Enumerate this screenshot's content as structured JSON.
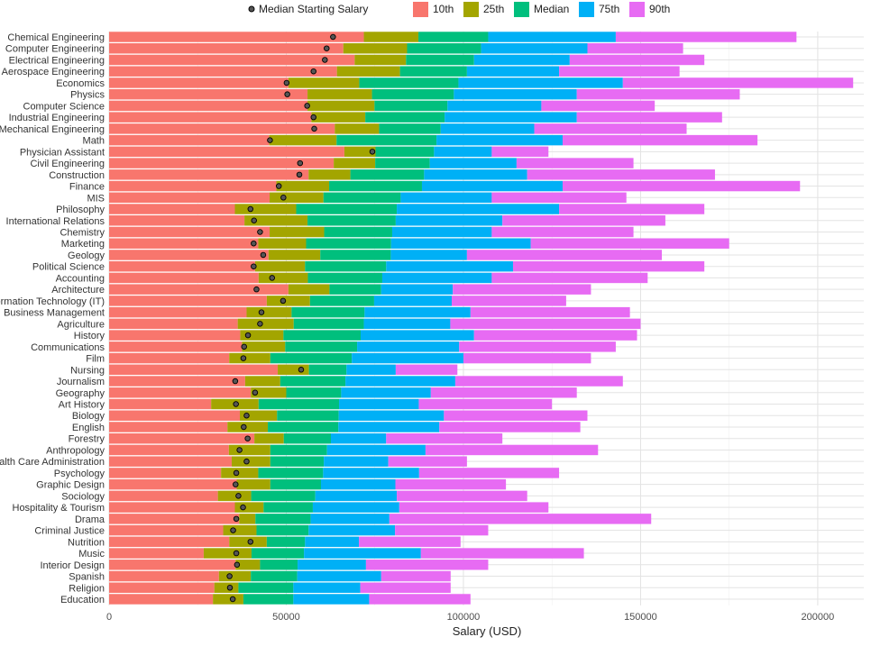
{
  "chart_data": {
    "type": "bar",
    "orientation": "horizontal",
    "xlabel": "Salary (USD)",
    "ylabel": "",
    "xlim": [
      0,
      213000
    ],
    "xticks": [
      0,
      50000,
      100000,
      150000,
      200000
    ],
    "grid": true,
    "legend": {
      "placement": "top",
      "point_label": "Median Starting Salary",
      "entries": [
        "10th",
        "25th",
        "Median",
        "75th",
        "90th"
      ]
    },
    "colors": {
      "10th": "#F8766D",
      "25th": "#A3A500",
      "Median": "#00BF7D",
      "75th": "#00B0F6",
      "90th": "#E76BF3",
      "point": "#555555"
    },
    "categories": [
      "Chemical Engineering",
      "Computer Engineering",
      "Electrical Engineering",
      "Aerospace Engineering",
      "Economics",
      "Physics",
      "Computer Science",
      "Industrial Engineering",
      "Mechanical Engineering",
      "Math",
      "Physician Assistant",
      "Civil Engineering",
      "Construction",
      "Finance",
      "MIS",
      "Philosophy",
      "International Relations",
      "Chemistry",
      "Marketing",
      "Geology",
      "Political Science",
      "Accounting",
      "Architecture",
      "Information Technology (IT)",
      "Business Management",
      "Agriculture",
      "History",
      "Communications",
      "Film",
      "Nursing",
      "Journalism",
      "Geography",
      "Art History",
      "Biology",
      "English",
      "Forestry",
      "Anthropology",
      "Health Care Administration",
      "Psychology",
      "Graphic Design",
      "Sociology",
      "Hospitality & Tourism",
      "Drama",
      "Criminal Justice",
      "Nutrition",
      "Music",
      "Interior Design",
      "Spanish",
      "Religion",
      "Education"
    ],
    "series": [
      {
        "name": "10th",
        "values": [
          71900,
          66100,
          69300,
          64300,
          50600,
          56000,
          56000,
          57100,
          63700,
          45200,
          66400,
          63400,
          56300,
          47200,
          45300,
          35500,
          38200,
          45300,
          42100,
          45000,
          41200,
          42200,
          50600,
          44500,
          38800,
          36300,
          37000,
          37500,
          33900,
          47600,
          38400,
          40000,
          28800,
          36900,
          33400,
          41000,
          33800,
          34600,
          31600,
          36000,
          30700,
          35500,
          36700,
          32200,
          33900,
          26700,
          35700,
          31000,
          29700,
          29300
        ]
      },
      {
        "name": "25th",
        "values": [
          87300,
          84100,
          83800,
          82100,
          70600,
          74200,
          74900,
          72300,
          76200,
          64200,
          75200,
          75100,
          68100,
          62100,
          60500,
          52800,
          56000,
          60700,
          55600,
          59600,
          55300,
          56100,
          62200,
          56700,
          51500,
          52100,
          49200,
          49700,
          45500,
          56400,
          48300,
          50000,
          42200,
          47400,
          44800,
          49300,
          45500,
          45500,
          42100,
          45500,
          40100,
          43600,
          41300,
          41600,
          44500,
          40200,
          42600,
          40000,
          36500,
          37900
        ]
      },
      {
        "name": "Median",
        "values": [
          107000,
          105000,
          103000,
          101000,
          98600,
          97300,
          95500,
          94700,
          93600,
          92400,
          91700,
          90500,
          88900,
          88300,
          82300,
          81200,
          80900,
          79900,
          79600,
          79500,
          78200,
          77100,
          76800,
          74800,
          72100,
          71900,
          71000,
          70000,
          68500,
          67000,
          66700,
          65500,
          64900,
          64800,
          64700,
          62600,
          61500,
          60600,
          60400,
          59800,
          58200,
          57500,
          56900,
          56300,
          55300,
          55000,
          53200,
          53100,
          52000,
          52000
        ]
      },
      {
        "name": "75th",
        "values": [
          143000,
          135000,
          130000,
          127000,
          145000,
          132000,
          122000,
          132000,
          120000,
          128000,
          108000,
          115000,
          118000,
          128000,
          108000,
          127000,
          111000,
          108000,
          119000,
          101000,
          114000,
          108000,
          97000,
          96700,
          102000,
          96300,
          103000,
          98800,
          100000,
          80900,
          97700,
          90800,
          87400,
          94500,
          93200,
          78200,
          89300,
          78800,
          87500,
          80800,
          81200,
          81900,
          79100,
          80700,
          70500,
          88000,
          72500,
          76800,
          70900,
          73400
        ]
      },
      {
        "name": "90th",
        "values": [
          194000,
          162000,
          168000,
          161000,
          210000,
          178000,
          154000,
          173000,
          163000,
          183000,
          124000,
          148000,
          171000,
          195000,
          146000,
          168000,
          157000,
          148000,
          175000,
          156000,
          168000,
          152000,
          136000,
          129000,
          147000,
          150000,
          149000,
          143000,
          136000,
          98300,
          145000,
          132000,
          125000,
          135000,
          133000,
          111000,
          138000,
          101000,
          127000,
          112000,
          118000,
          124000,
          153000,
          107000,
          99200,
          134000,
          107000,
          96400,
          96400,
          102000
        ]
      },
      {
        "name": "Median Starting Salary",
        "values": [
          63200,
          61400,
          60900,
          57700,
          50100,
          50300,
          55900,
          57700,
          57900,
          45400,
          74300,
          53900,
          53700,
          47900,
          49200,
          39900,
          40900,
          42600,
          40800,
          43500,
          40800,
          46000,
          41600,
          49100,
          43000,
          42600,
          39200,
          38100,
          37900,
          54200,
          35600,
          41200,
          35800,
          38800,
          38000,
          39100,
          36800,
          38800,
          35900,
          35700,
          36500,
          37800,
          35900,
          35000,
          39900,
          35900,
          36100,
          34000,
          34100,
          34900
        ]
      }
    ]
  }
}
